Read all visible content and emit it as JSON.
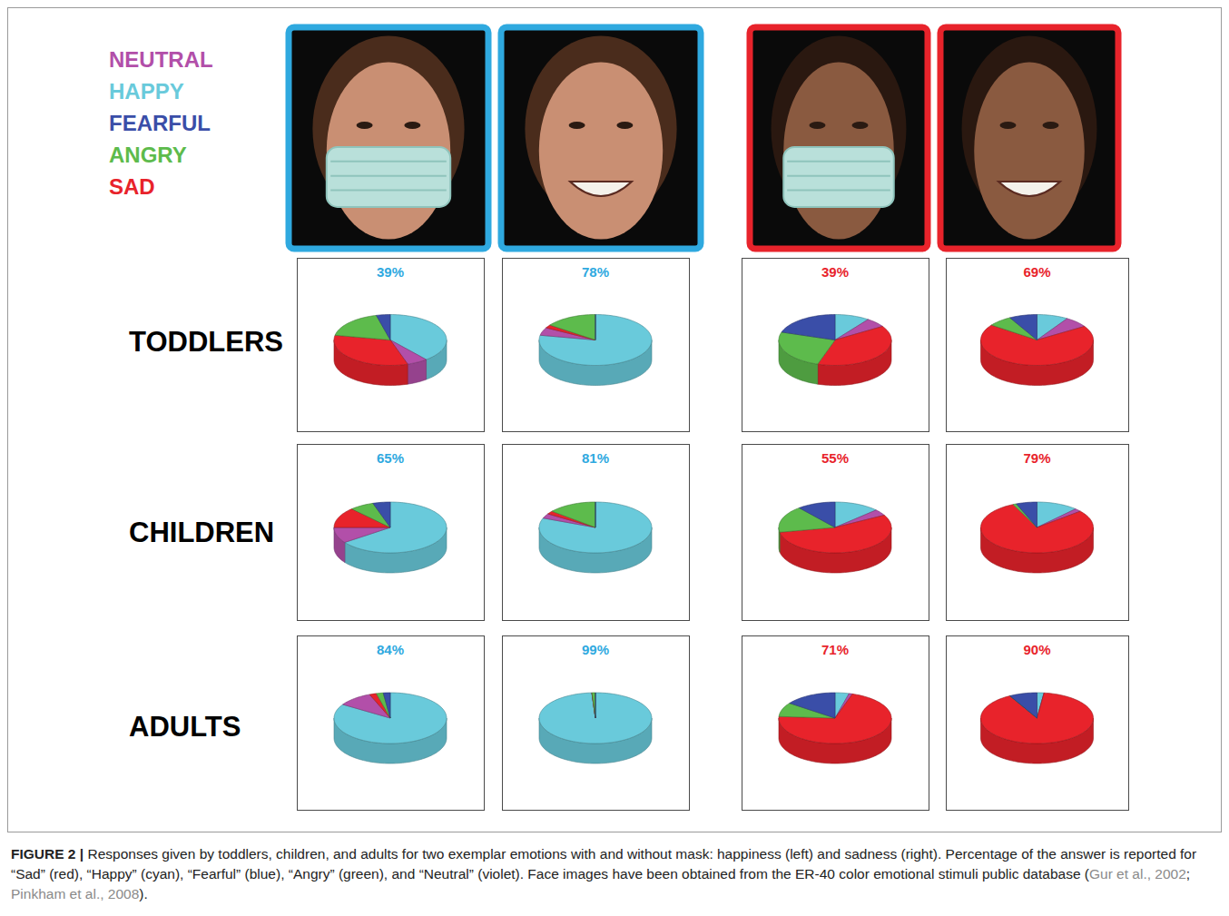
{
  "legend": {
    "labels": [
      "NEUTRAL",
      "HAPPY",
      "FEARFUL",
      "ANGRY",
      "SAD"
    ],
    "colors": [
      "#b24fa9",
      "#69cadb",
      "#3a4ea8",
      "#5dbb4c",
      "#e8232b"
    ]
  },
  "rows": [
    "TODDLERS",
    "CHILDREN",
    "ADULTS"
  ],
  "chart_data": [
    {
      "type": "pie",
      "title": "39%",
      "color": "#2fa9df",
      "values": [
        6,
        39,
        4,
        18,
        33
      ]
    },
    {
      "type": "pie",
      "title": "78%",
      "color": "#2fa9df",
      "values": [
        5,
        78,
        0,
        15,
        2
      ]
    },
    {
      "type": "pie",
      "title": "39%",
      "color": "#e8232b",
      "values": [
        6,
        10,
        20,
        25,
        39
      ]
    },
    {
      "type": "pie",
      "title": "69%",
      "color": "#e8232b",
      "values": [
        7,
        9,
        8,
        7,
        69
      ]
    },
    {
      "type": "pie",
      "title": "65%",
      "color": "#2fa9df",
      "values": [
        10,
        65,
        5,
        7,
        13
      ]
    },
    {
      "type": "pie",
      "title": "81%",
      "color": "#2fa9df",
      "values": [
        3,
        81,
        0,
        14,
        2
      ]
    },
    {
      "type": "pie",
      "title": "55%",
      "color": "#e8232b",
      "values": [
        4,
        13,
        11,
        17,
        55
      ]
    },
    {
      "type": "pie",
      "title": "79%",
      "color": "#e8232b",
      "values": [
        2,
        12,
        6,
        1,
        79
      ]
    },
    {
      "type": "pie",
      "title": "84%",
      "color": "#2fa9df",
      "values": [
        10,
        84,
        2,
        2,
        2
      ]
    },
    {
      "type": "pie",
      "title": "99%",
      "color": "#2fa9df",
      "values": [
        0,
        99,
        0,
        1,
        0
      ]
    },
    {
      "type": "pie",
      "title": "71%",
      "color": "#e8232b",
      "values": [
        1,
        4,
        15,
        9,
        71
      ]
    },
    {
      "type": "pie",
      "title": "90%",
      "color": "#e8232b",
      "values": [
        0,
        2,
        8,
        0,
        90
      ]
    }
  ],
  "caption": {
    "label": "FIGURE 2 |",
    "parts": [
      "Responses given by toddlers, children, and adults for two exemplar emotions with and without mask: happiness (left) and sadness (right). Percentage of the answer is reported for “Sad” (red), “Happy” (cyan), “Fearful” (blue), “Angry” (green), and “Neutral” (violet). Face images have been obtained from the ER-40 color emotional stimuli public database (",
      "Gur et al., 2002",
      "; ",
      "Pinkham et al., 2008",
      ")."
    ]
  }
}
